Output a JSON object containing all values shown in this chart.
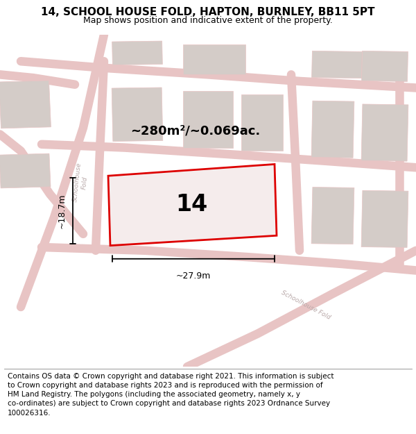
{
  "title": "14, SCHOOL HOUSE FOLD, HAPTON, BURNLEY, BB11 5PT",
  "subtitle": "Map shows position and indicative extent of the property.",
  "footer": "Contains OS data © Crown copyright and database right 2021. This information is subject to Crown copyright and database rights 2023 and is reproduced with the permission of HM Land Registry. The polygons (including the associated geometry, namely x, y co-ordinates) are subject to Crown copyright and database rights 2023 Ordnance Survey 100026316.",
  "area_label": "~280m²/~0.069ac.",
  "number_label": "14",
  "width_label": "~27.9m",
  "height_label": "~18.7m",
  "map_bg": "#f2eeec",
  "road_color": "#e8c4c4",
  "building_color": "#d4ccc8",
  "highlight_color": "#dd0000",
  "highlight_fill": "#f5ecec",
  "road_label_color": "#b8a8a8",
  "title_fontsize": 11,
  "subtitle_fontsize": 9,
  "footer_fontsize": 7.5,
  "number_fontsize": 24,
  "area_fontsize": 13,
  "dim_fontsize": 9
}
